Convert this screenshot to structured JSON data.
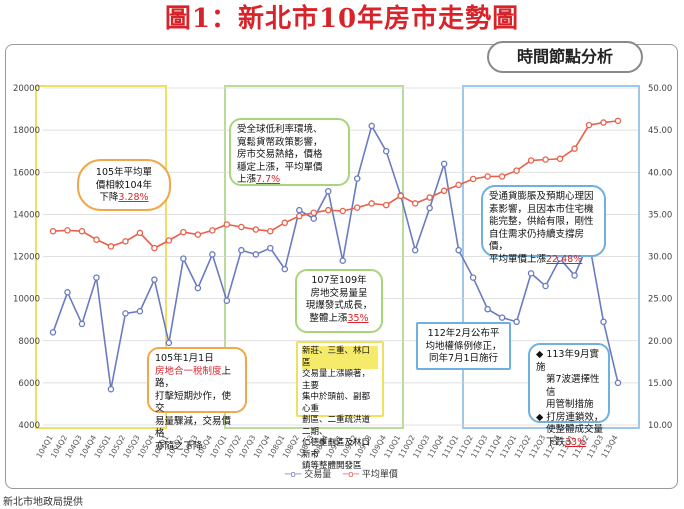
{
  "title": "圖1：新北市10年房市走勢圖",
  "badge": "時間節點分析",
  "source": "新北市地政局提供",
  "colors": {
    "volume": "#6a7bc0",
    "price": "#e8604a",
    "box_yellow": "#efe060",
    "box_green": "#b9dc9a",
    "box_blue": "#9fc8e8",
    "callout_orange": "#f0a84a",
    "callout_green": "#a8d47a",
    "callout_blue": "#6fb0e0"
  },
  "callouts": [
    {
      "id": "c1",
      "lines": [
        "105年平均單",
        "價相較104年",
        "下降"
      ],
      "highlight": "3.28%",
      "style": "orange"
    },
    {
      "id": "c2",
      "lines": [
        "受全球低利率環境、",
        "寬鬆貨幣政策影響，",
        "房市交易熱絡，價格",
        "穩定上漲，平均單價",
        "上漲"
      ],
      "highlight": "7.7%",
      "style": "green"
    },
    {
      "id": "c3",
      "lines": [
        "107至109年",
        "房地交易量呈",
        "現爆發式成長，",
        "整體上漲"
      ],
      "highlight": "35%",
      "style": "green"
    },
    {
      "id": "c4",
      "lines": [
        "105年1月1日"
      ],
      "red_text": "房地合一稅制度",
      "rest": [
        "上路，",
        "打擊短期炒作，使交",
        "易量驟減，交易價格",
        "亦隨之下降"
      ],
      "style": "orange"
    },
    {
      "id": "c5",
      "lines": [
        "新莊、三重、林口區",
        "交易量上漲顯著，主要",
        "集中於頭前、副都心重",
        "劃區、二重疏洪道二期、",
        "仁德重劃區及林口新市",
        "鎮等整體開發區"
      ],
      "tag": "新莊、三重、林口區",
      "style": "yellow"
    },
    {
      "id": "c6",
      "lines": [
        "112年2月公布平",
        "均地權條例修正，",
        "同年7月1日施行"
      ],
      "style": "blue"
    },
    {
      "id": "c7",
      "lines": [
        "受通貨膨脹及預期心理因",
        "素影響，且因本市住宅機",
        "能完整，供給有限，剛性",
        "自住需求仍持續支撐房價，",
        "平均單價上漲"
      ],
      "highlight": "22.48%",
      "style": "blue"
    },
    {
      "id": "c8",
      "lines": [
        "113年9月實施",
        "第7波選擇性信",
        "用管制措施",
        "打房連鎖效，",
        "使整體成交量",
        "下跌"
      ],
      "highlight": "33%",
      "style": "blue"
    }
  ],
  "chart_data": {
    "type": "line",
    "x": [
      "104Q1",
      "104Q2",
      "104Q3",
      "104Q4",
      "105Q1",
      "105Q2",
      "105Q3",
      "105Q4",
      "106Q1",
      "106Q2",
      "106Q3",
      "106Q4",
      "107Q1",
      "107Q2",
      "107Q3",
      "107Q4",
      "108Q1",
      "108Q2",
      "108Q3",
      "108Q4",
      "109Q1",
      "109Q2",
      "109Q3",
      "109Q4",
      "110Q1",
      "110Q2",
      "110Q3",
      "110Q4",
      "111Q1",
      "111Q2",
      "111Q3",
      "111Q4",
      "112Q1",
      "112Q2",
      "112Q3",
      "112Q4",
      "113Q1",
      "113Q2",
      "113Q3",
      "113Q4"
    ],
    "series": [
      {
        "name": "交易量",
        "axis": "left",
        "values": [
          8400,
          10300,
          8800,
          11000,
          5700,
          9300,
          9400,
          10900,
          7900,
          11900,
          10500,
          12100,
          9900,
          12300,
          12100,
          12400,
          11400,
          14200,
          13800,
          15100,
          11800,
          15700,
          18200,
          17000,
          14900,
          12300,
          14300,
          16400,
          12300,
          11000,
          9500,
          9100,
          8900,
          11200,
          10600,
          11900,
          11100,
          12700,
          8900,
          6000
        ]
      },
      {
        "name": "平均單價",
        "axis": "right",
        "values": [
          33.0,
          33.1,
          33.0,
          32.0,
          31.2,
          31.8,
          32.8,
          31.0,
          31.9,
          32.9,
          32.6,
          33.1,
          33.8,
          33.5,
          33.2,
          33.0,
          34.0,
          34.8,
          35.2,
          35.5,
          35.4,
          35.8,
          36.3,
          36.1,
          37.2,
          36.3,
          37.0,
          37.8,
          38.5,
          39.2,
          39.5,
          39.5,
          40.2,
          41.4,
          41.5,
          41.6,
          42.8,
          45.6,
          45.9,
          46.1
        ]
      }
    ],
    "y_left": {
      "ylim": [
        4000,
        20000
      ],
      "ticks": [
        4000,
        6000,
        8000,
        10000,
        12000,
        14000,
        16000,
        18000,
        20000
      ]
    },
    "y_right": {
      "ylim": [
        10,
        50
      ],
      "ticks": [
        "10.00",
        "15.00",
        "20.00",
        "25.00",
        "30.00",
        "35.00",
        "40.00",
        "45.00",
        "50.00"
      ]
    },
    "legend": [
      "交易量",
      "平均單價"
    ],
    "legend_position": "bottom",
    "grid": true
  }
}
